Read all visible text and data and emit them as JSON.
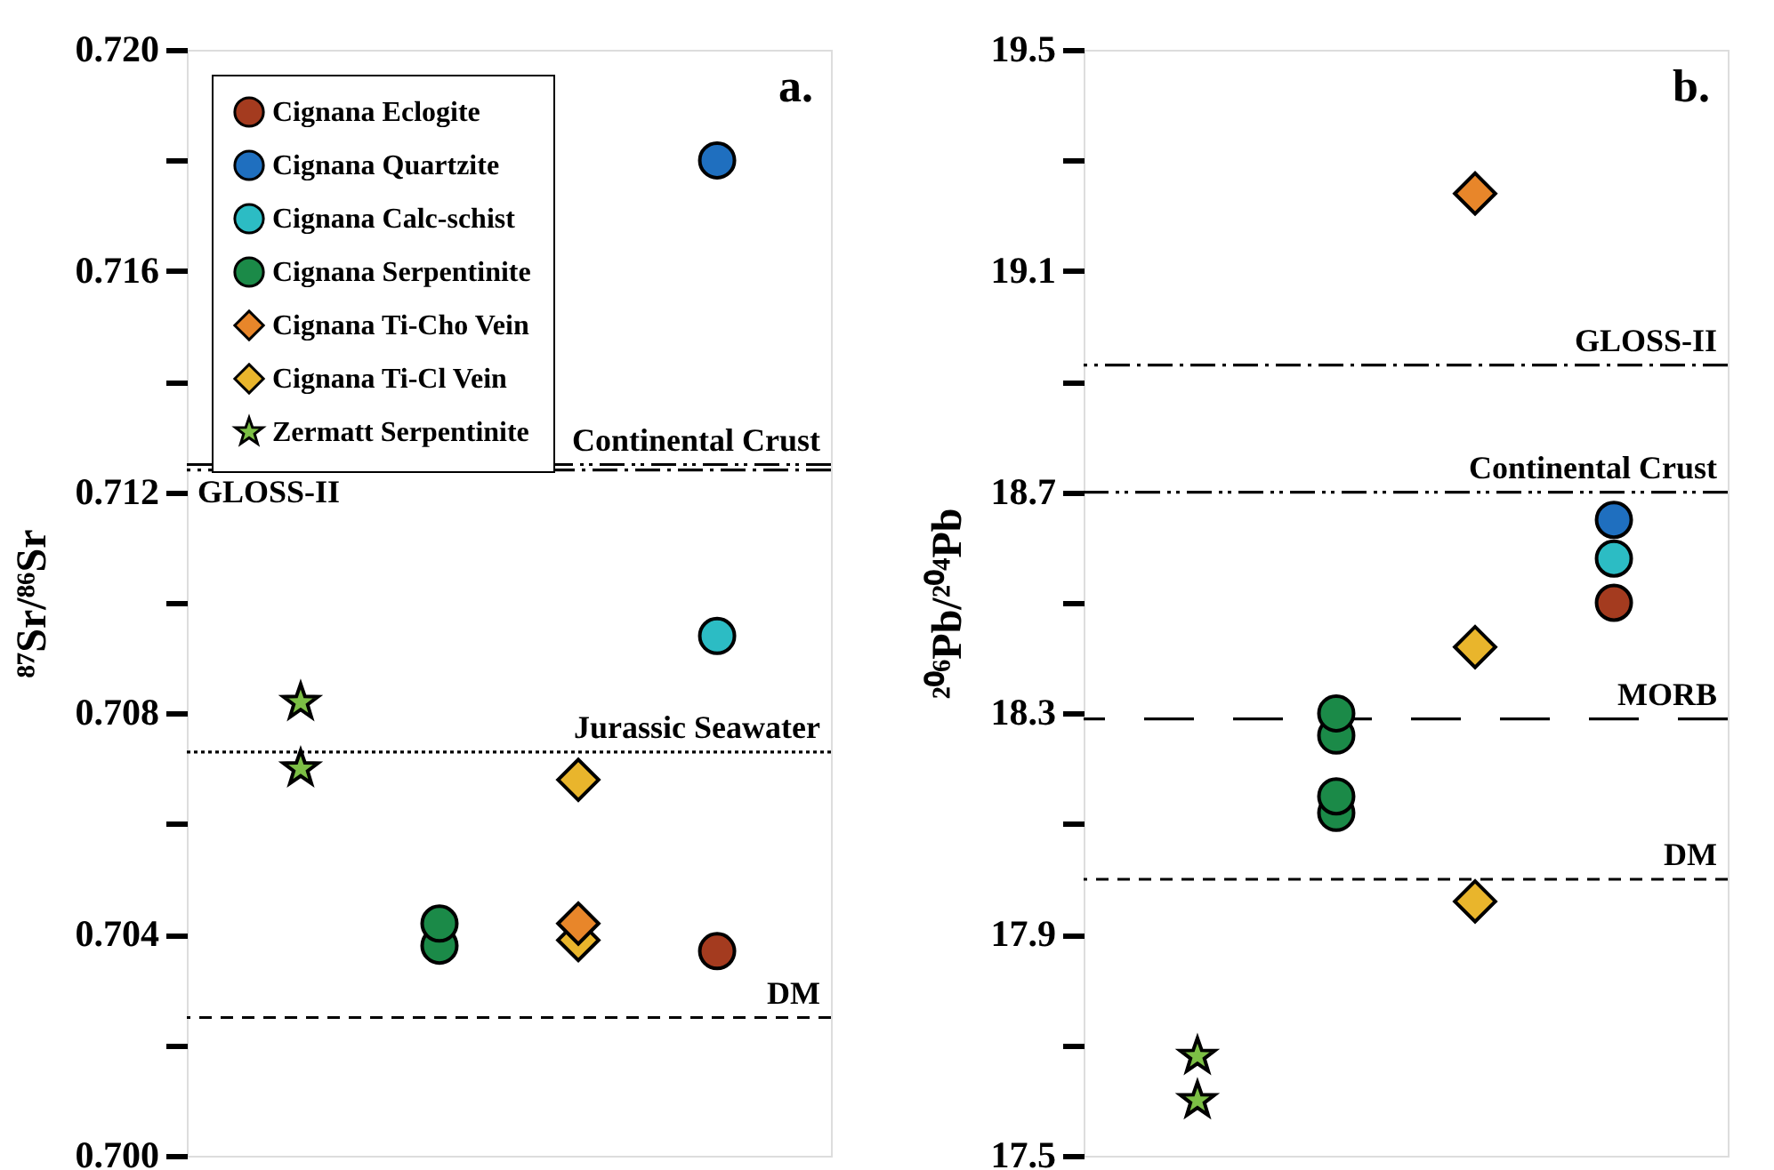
{
  "chart_data": [
    {
      "type": "scatter",
      "ylabel": "⁸⁷Sr/⁸⁶Sr",
      "categories": [
        null,
        null,
        null,
        null
      ],
      "tick_labels": "y",
      "legend": "top left",
      "grid": false,
      "ylim": [
        0.7,
        0.72
      ],
      "yticks": [
        {
          "value": 0.72,
          "label": "0.720"
        },
        {
          "value": 0.718,
          "label": null
        },
        0.716,
        {
          "value": 0.714,
          "label": null
        },
        0.712,
        {
          "value": 0.71,
          "label": null
        },
        0.708,
        {
          "value": 0.706,
          "label": null
        },
        0.704,
        {
          "value": 0.702,
          "label": null
        },
        {
          "value": 0.7,
          "label": "0.700"
        }
      ],
      "series": [
        {
          "name": "Cignana Eclogite",
          "color": "#a43b1f",
          "marker": "circle",
          "values": [
            null,
            null,
            null,
            0.7037
          ]
        },
        {
          "name": "Cignana Quartzite",
          "color": "#1f6fbf",
          "marker": "circle",
          "values": [
            null,
            null,
            null,
            0.718
          ]
        },
        {
          "name": "Cignana Calc-schist",
          "color": "#2cbcc4",
          "marker": "circle",
          "values": [
            null,
            null,
            null,
            0.7094
          ]
        },
        {
          "name": "Cignana Serpentinite",
          "color": "#1b8a48",
          "marker": "circle",
          "values": [
            null,
            0.7038,
            null,
            null
          ]
        },
        {
          "color": "#1b8a48",
          "marker": "circle",
          "values": [
            null,
            0.7042,
            null,
            null
          ]
        },
        {
          "name": "Cignana Ti-Cho Vein",
          "color": "#e8862a",
          "marker": "diamond",
          "values": [
            null,
            null,
            null,
            null
          ]
        },
        {
          "name": "Cignana Ti-Cl Vein",
          "color": "#e9b52c",
          "marker": "diamond",
          "values": [
            null,
            null,
            0.7068,
            null
          ]
        },
        {
          "color": "#e9b52c",
          "marker": "diamond",
          "values": [
            null,
            null,
            0.7039,
            null
          ]
        },
        {
          "color": "#e8862a",
          "marker": "diamond",
          "values": [
            null,
            null,
            0.7042,
            null
          ]
        },
        {
          "name": "Zermatt Serpentinite",
          "color": "#7cbf45",
          "marker": "star",
          "values": [
            0.7082,
            null,
            null,
            null
          ]
        },
        {
          "color": "#7cbf45",
          "marker": "star",
          "values": [
            0.707,
            null,
            null,
            null
          ]
        }
      ],
      "ref_lines": [
        {
          "axis": "y",
          "value": 0.7125,
          "label": "Continental Crust",
          "line_style": "dashdotdot"
        },
        {
          "axis": "y",
          "value": 0.7124,
          "label": "GLOSS-II",
          "line_style": "dashdot"
        },
        {
          "axis": "y",
          "value": 0.7073,
          "label": "Jurassic Seawater",
          "line_style": "dotted"
        },
        {
          "axis": "y",
          "value": 0.7025,
          "label": "DM",
          "line_style": "dashed"
        }
      ],
      "annotations": [
        "a."
      ]
    },
    {
      "type": "scatter",
      "ylabel": "²⁰⁶Pb/²⁰⁴Pb",
      "categories": [
        null,
        null,
        null,
        null
      ],
      "tick_labels": "y",
      "grid": false,
      "ylim": [
        17.5,
        19.5
      ],
      "yticks": [
        19.5,
        {
          "value": 19.3,
          "label": null
        },
        19.1,
        {
          "value": 18.9,
          "label": null
        },
        18.7,
        {
          "value": 18.5,
          "label": null
        },
        18.3,
        {
          "value": 18.1,
          "label": null
        },
        17.9,
        {
          "value": 17.7,
          "label": null
        },
        17.5
      ],
      "series": [
        {
          "color": "#a43b1f",
          "marker": "circle",
          "values": [
            null,
            null,
            null,
            18.5
          ]
        },
        {
          "color": "#2cbcc4",
          "marker": "circle",
          "values": [
            null,
            null,
            null,
            18.58
          ]
        },
        {
          "color": "#1f6fbf",
          "marker": "circle",
          "values": [
            null,
            null,
            null,
            18.65
          ]
        },
        {
          "color": "#1b8a48",
          "marker": "circle",
          "values": [
            null,
            18.12,
            null,
            null
          ]
        },
        {
          "color": "#1b8a48",
          "marker": "circle",
          "values": [
            null,
            18.15,
            null,
            null
          ]
        },
        {
          "color": "#1b8a48",
          "marker": "circle",
          "values": [
            null,
            18.26,
            null,
            null
          ]
        },
        {
          "color": "#1b8a48",
          "marker": "circle",
          "values": [
            null,
            18.3,
            null,
            null
          ]
        },
        {
          "color": "#e8862a",
          "marker": "diamond",
          "values": [
            null,
            null,
            19.24,
            null
          ]
        },
        {
          "color": "#e9b52c",
          "marker": "diamond",
          "values": [
            null,
            null,
            18.42,
            null
          ]
        },
        {
          "color": "#e9b52c",
          "marker": "diamond",
          "values": [
            null,
            null,
            17.96,
            null
          ]
        },
        {
          "color": "#7cbf45",
          "marker": "star",
          "values": [
            17.68,
            null,
            null,
            null
          ]
        },
        {
          "color": "#7cbf45",
          "marker": "star",
          "values": [
            17.6,
            null,
            null,
            null
          ]
        }
      ],
      "ref_lines": [
        {
          "axis": "y",
          "value": 18.93,
          "label": "GLOSS-II",
          "line_style": "dashdot"
        },
        {
          "axis": "y",
          "value": 18.7,
          "label": "Continental Crust",
          "line_style": "dashdotdot"
        },
        {
          "axis": "y",
          "value": 18.29,
          "label": "MORB",
          "line_style": "dashed_long"
        },
        {
          "axis": "y",
          "value": 18.0,
          "label": "DM",
          "line_style": "dashed"
        }
      ],
      "annotations": [
        "b."
      ]
    }
  ]
}
